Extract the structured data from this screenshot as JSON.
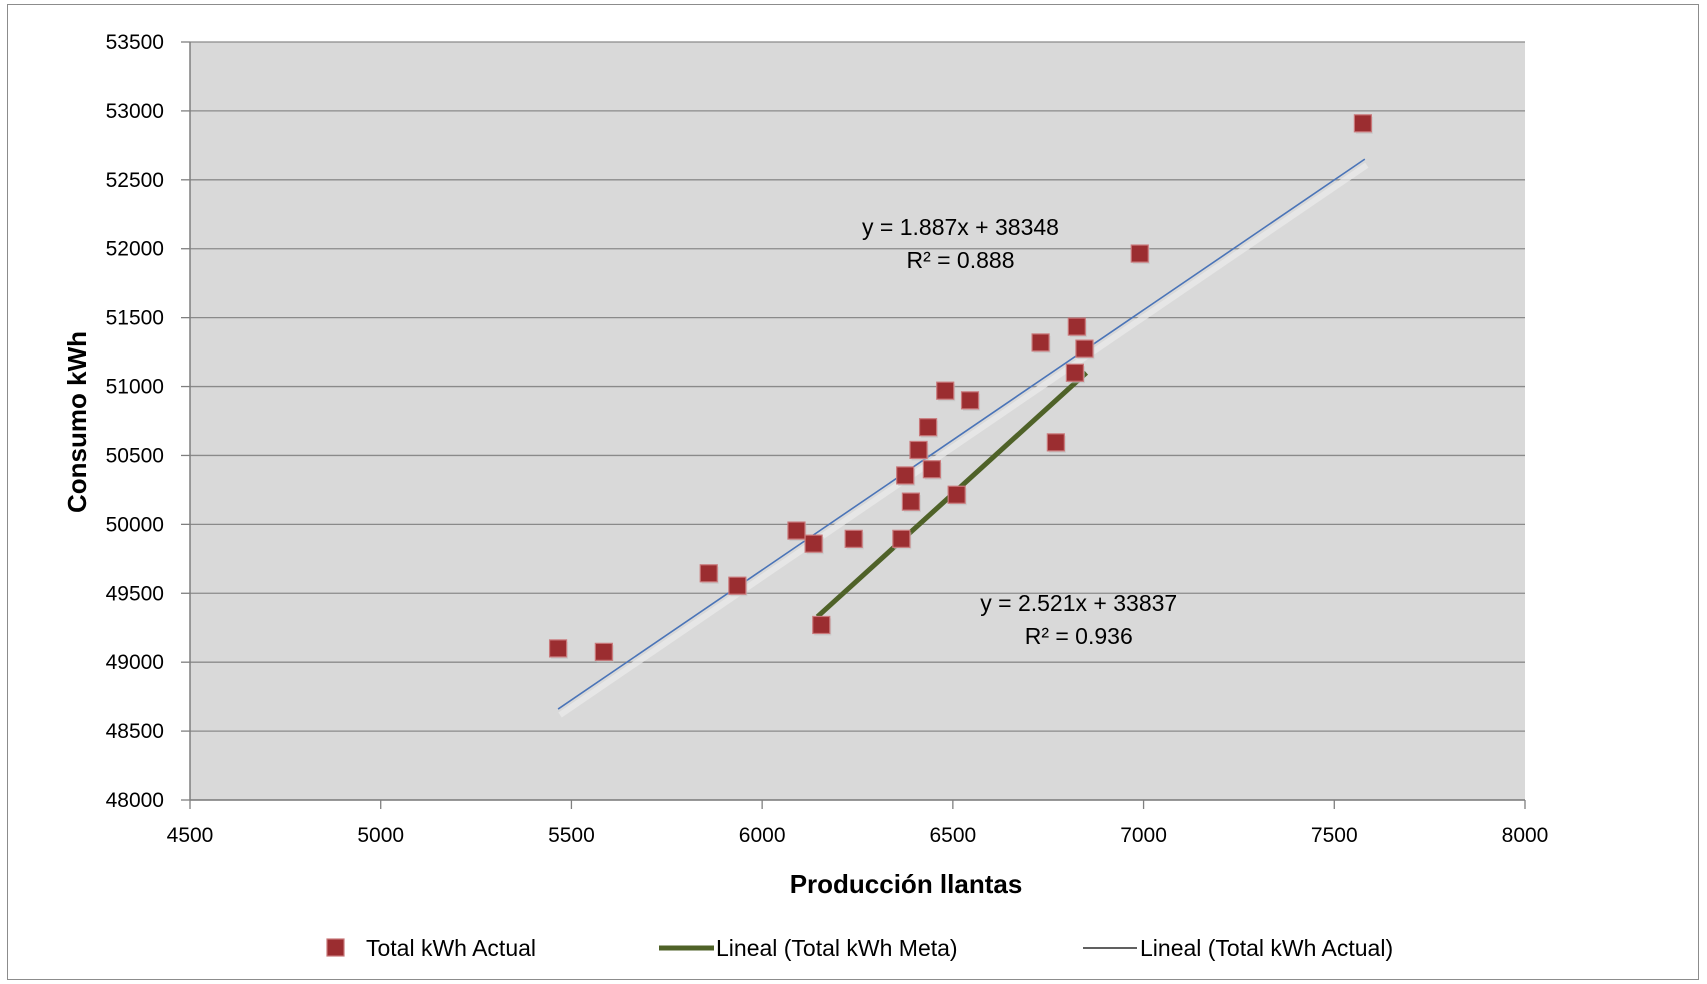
{
  "chart_data": {
    "type": "scatter",
    "xlabel": "Producción llantas",
    "ylabel": "Consumo kWh",
    "xlim": [
      4500,
      8000
    ],
    "ylim": [
      48000,
      53500
    ],
    "x_ticks": [
      "4500",
      "5000",
      "5500",
      "6000",
      "6500",
      "7000",
      "7500",
      "8000"
    ],
    "y_ticks": [
      "48000",
      "48500",
      "49000",
      "49500",
      "50000",
      "50500",
      "51000",
      "51500",
      "52000",
      "52500",
      "53000",
      "53500"
    ],
    "grid": true,
    "legend_position": "bottom",
    "colors": {
      "plot_background": "#d9d9d9",
      "marker": "#9b2d30",
      "trend_actual": "#4a74b8",
      "trend_meta": "#4f6228",
      "gridline": "#8a8a8a"
    },
    "series": [
      {
        "name": "Total kWh Actual",
        "kind": "markers",
        "marker": "square",
        "points": [
          [
            5465,
            49100
          ],
          [
            5585,
            49075
          ],
          [
            5860,
            49645
          ],
          [
            5935,
            49555
          ],
          [
            6090,
            49955
          ],
          [
            6135,
            49860
          ],
          [
            6155,
            49270
          ],
          [
            6240,
            49895
          ],
          [
            6365,
            49895
          ],
          [
            6375,
            50355
          ],
          [
            6390,
            50165
          ],
          [
            6410,
            50540
          ],
          [
            6435,
            50705
          ],
          [
            6445,
            50400
          ],
          [
            6480,
            50970
          ],
          [
            6510,
            50215
          ],
          [
            6545,
            50900
          ],
          [
            6730,
            51320
          ],
          [
            6770,
            50595
          ],
          [
            6820,
            51100
          ],
          [
            6825,
            51435
          ],
          [
            6845,
            51275
          ],
          [
            6990,
            51965
          ],
          [
            7575,
            52910
          ]
        ]
      },
      {
        "name": "Lineal (Total kWh Meta)",
        "kind": "trendline",
        "points": [
          [
            6145,
            49330
          ],
          [
            6850,
            51100
          ]
        ]
      },
      {
        "name": "Lineal (Total kWh Actual)",
        "kind": "trendline",
        "points": [
          [
            5465,
            48660
          ],
          [
            7580,
            52650
          ]
        ]
      }
    ],
    "annotations": [
      {
        "line1": "y = 1.887x + 38348",
        "line2": "R² = 0.888",
        "at": [
          6520,
          52100
        ]
      },
      {
        "line1": "y = 2.521x + 33837",
        "line2": "R² = 0.936",
        "at": [
          6830,
          49370
        ]
      }
    ]
  }
}
